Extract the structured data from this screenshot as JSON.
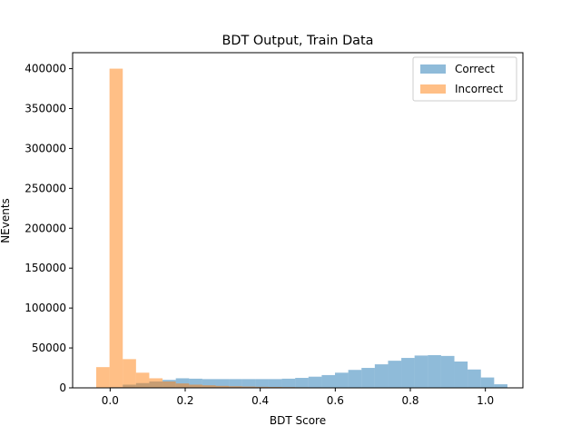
{
  "chart_data": {
    "type": "bar",
    "title": "BDT Output, Train Data",
    "xlabel": "BDT Score",
    "ylabel": "NEvents",
    "xlim": [
      -0.1,
      1.1
    ],
    "ylim": [
      0,
      420000
    ],
    "xticks": [
      0.0,
      0.2,
      0.4,
      0.6,
      0.8,
      1.0
    ],
    "xtick_labels": [
      "0.0",
      "0.2",
      "0.4",
      "0.6",
      "0.8",
      "1.0"
    ],
    "yticks": [
      0,
      50000,
      100000,
      150000,
      200000,
      250000,
      300000,
      350000,
      400000
    ],
    "ytick_labels": [
      "0",
      "50000",
      "100000",
      "150000",
      "200000",
      "250000",
      "300000",
      "350000",
      "400000"
    ],
    "grid": false,
    "legend_position": "top-right",
    "bin_edges": [
      -0.0371,
      -0.0017,
      0.0336,
      0.069,
      0.1043,
      0.1397,
      0.175,
      0.2104,
      0.2457,
      0.2811,
      0.3164,
      0.3518,
      0.3871,
      0.4225,
      0.4578,
      0.4932,
      0.5285,
      0.5639,
      0.5992,
      0.6346,
      0.6699,
      0.7053,
      0.7406,
      0.776,
      0.8113,
      0.8467,
      0.882,
      0.9174,
      0.9527,
      0.9881,
      1.0234,
      1.0588
    ],
    "series": [
      {
        "name": "Correct",
        "color": "#1f77b4",
        "opacity": 0.5,
        "values": [
          0,
          1000,
          4000,
          6000,
          8000,
          10000,
          12000,
          11500,
          11000,
          11000,
          11000,
          11000,
          11000,
          11000,
          11500,
          12500,
          14000,
          16000,
          19000,
          22500,
          25000,
          29500,
          34000,
          37500,
          40500,
          41000,
          40000,
          33000,
          23000,
          13000,
          4500
        ]
      },
      {
        "name": "Incorrect",
        "color": "#ff7f0e",
        "opacity": 0.5,
        "values": [
          26000,
          400000,
          36000,
          19000,
          12000,
          8000,
          5500,
          4000,
          3200,
          2500,
          2000,
          1600,
          1300,
          1100,
          900,
          700,
          600,
          500,
          400,
          300,
          250,
          200,
          150,
          120,
          100,
          80,
          60,
          40,
          20,
          10,
          0
        ]
      }
    ]
  }
}
